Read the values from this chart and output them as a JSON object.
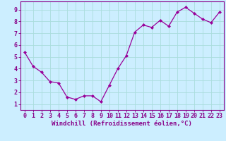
{
  "x": [
    0,
    1,
    2,
    3,
    4,
    5,
    6,
    7,
    8,
    9,
    10,
    11,
    12,
    13,
    14,
    15,
    16,
    17,
    18,
    19,
    20,
    21,
    22,
    23
  ],
  "y": [
    5.4,
    4.2,
    3.7,
    2.9,
    2.8,
    1.6,
    1.4,
    1.7,
    1.7,
    1.2,
    2.6,
    4.0,
    5.1,
    7.1,
    7.7,
    7.5,
    8.1,
    7.6,
    8.8,
    9.2,
    8.7,
    8.2,
    7.9,
    8.8
  ],
  "line_color": "#990099",
  "marker": "D",
  "marker_size": 2,
  "bg_color": "#cceeff",
  "grid_color": "#aadddd",
  "xlabel": "Windchill (Refroidissement éolien,°C)",
  "ylim": [
    0.5,
    9.7
  ],
  "xlim": [
    -0.5,
    23.5
  ],
  "yticks": [
    1,
    2,
    3,
    4,
    5,
    6,
    7,
    8,
    9
  ],
  "xticks": [
    0,
    1,
    2,
    3,
    4,
    5,
    6,
    7,
    8,
    9,
    10,
    11,
    12,
    13,
    14,
    15,
    16,
    17,
    18,
    19,
    20,
    21,
    22,
    23
  ],
  "tick_color": "#880088",
  "label_fontsize": 6.5,
  "tick_fontsize": 6.0,
  "spine_color": "#880088"
}
